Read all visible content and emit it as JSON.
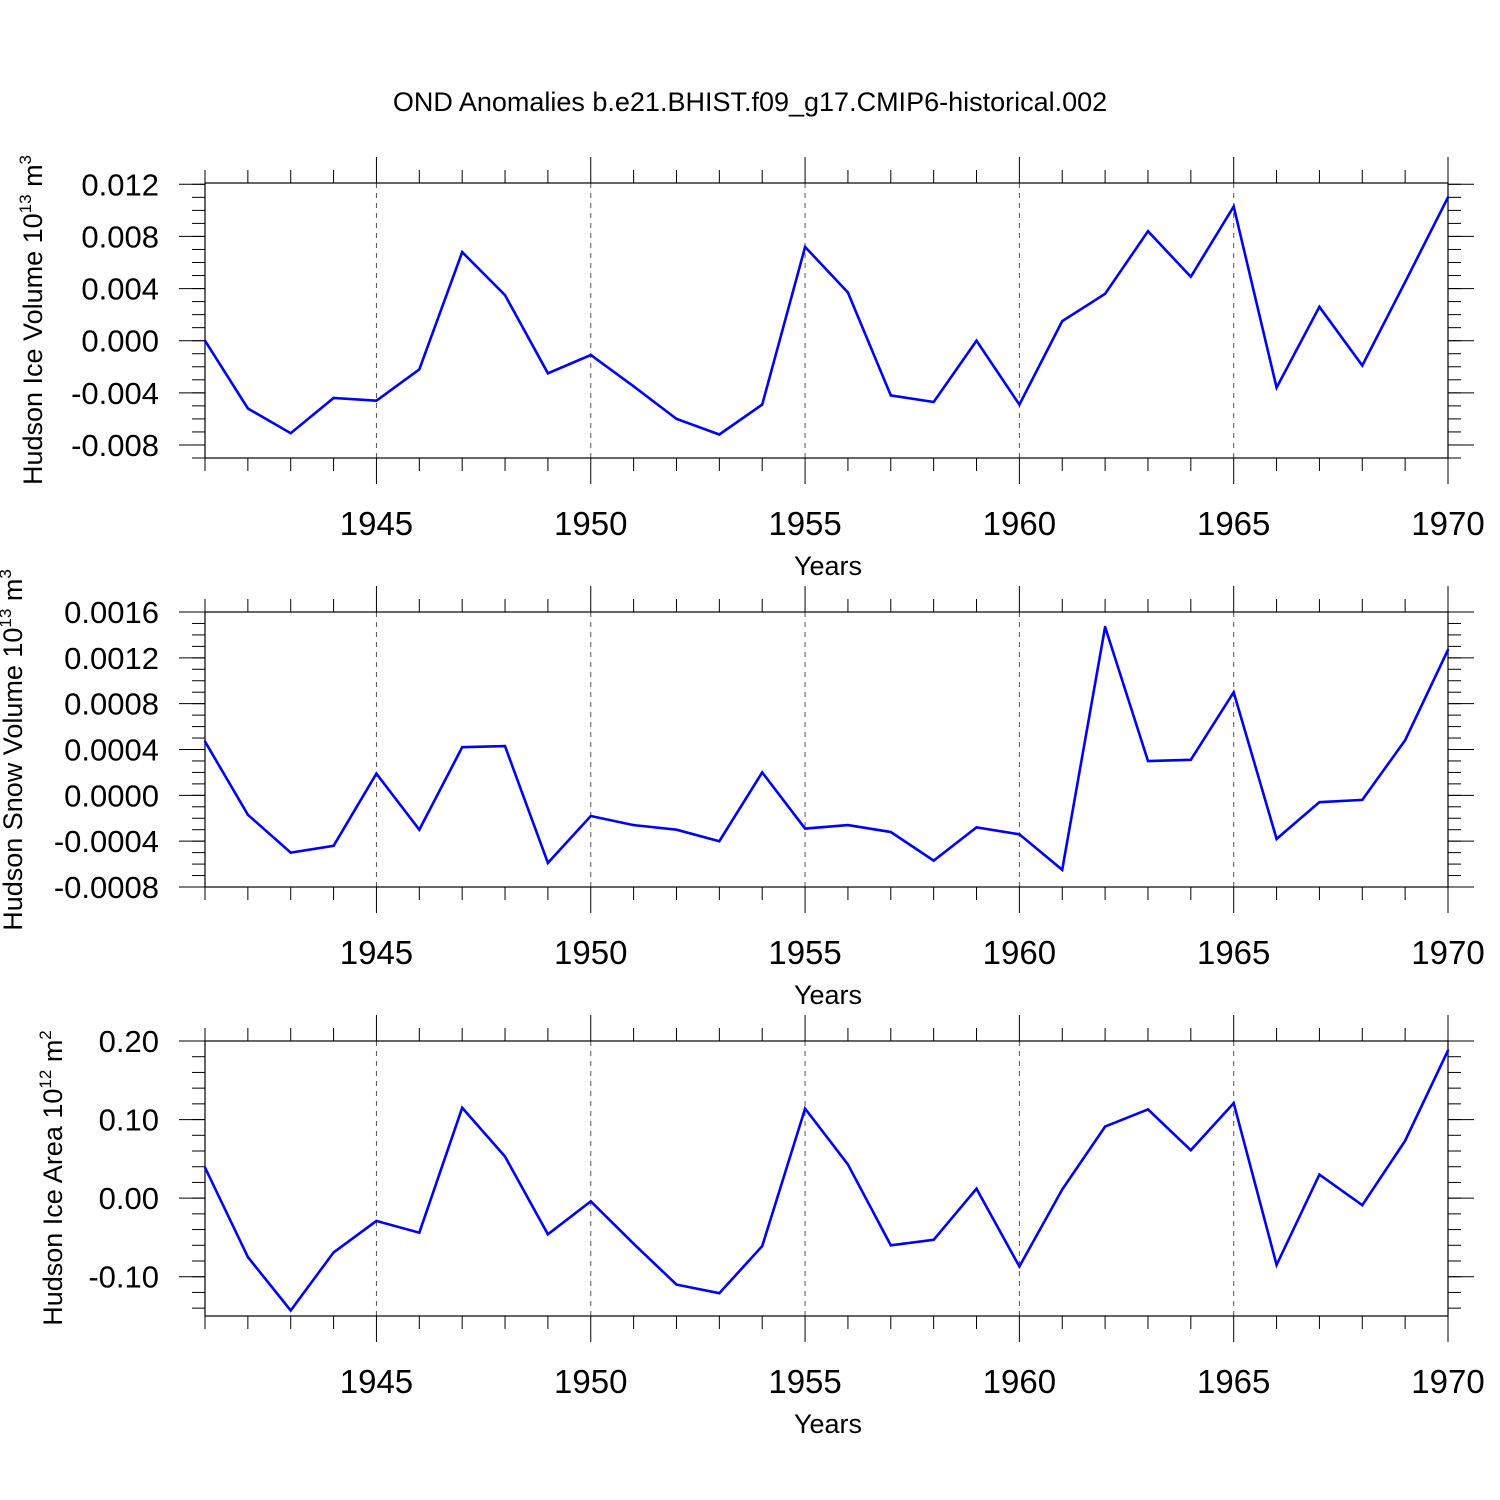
{
  "title": "OND Anomalies b.e21.BHIST.f09_g17.CMIP6-historical.002",
  "colors": {
    "line": "#0000ff",
    "axes": "#000000",
    "grid": "#000000"
  },
  "chart_data": [
    {
      "type": "line",
      "title": "OND Anomalies b.e21.BHIST.f09_g17.CMIP6-historical.002",
      "xlabel": "Years",
      "ylabel_text": "Hudson Ice Volume 10",
      "ylabel_exp": "13",
      "ylabel_unit": " m",
      "ylabel_unit_exp": "3",
      "xlim": [
        1941,
        1970
      ],
      "ylim": [
        -0.009,
        0.0121
      ],
      "yticks": [
        0.012,
        0.008,
        0.004,
        0.0,
        -0.004,
        -0.008
      ],
      "ytick_labels": [
        "0.012",
        "0.008",
        "0.004",
        "0.000",
        "-0.004",
        "-0.008"
      ],
      "yminor_step": 0.001,
      "xticks": [
        1945,
        1950,
        1955,
        1960,
        1965,
        1970
      ],
      "xtick_labels": [
        "1945",
        "1950",
        "1955",
        "1960",
        "1965",
        "1970"
      ],
      "series": [
        {
          "name": "Hudson Ice Volume",
          "x": [
            1941,
            1942,
            1943,
            1944,
            1945,
            1946,
            1947,
            1948,
            1949,
            1950,
            1951,
            1952,
            1953,
            1954,
            1955,
            1956,
            1957,
            1958,
            1959,
            1960,
            1961,
            1962,
            1963,
            1964,
            1965,
            1966,
            1967,
            1968,
            1969,
            1970
          ],
          "values": [
            0.0,
            -0.0052,
            -0.0071,
            -0.0044,
            -0.0046,
            -0.0022,
            0.0068,
            0.0035,
            -0.0025,
            -0.0011,
            -0.0035,
            -0.006,
            -0.0072,
            -0.0049,
            0.0072,
            0.0037,
            -0.0042,
            -0.0047,
            0.0,
            -0.0049,
            0.0015,
            0.0036,
            0.0084,
            0.0049,
            0.0103,
            -0.0036,
            0.0026,
            -0.0019,
            0.0045,
            0.011
          ]
        }
      ]
    },
    {
      "type": "line",
      "xlabel": "Years",
      "ylabel_text": "Hudson Snow Volume 10",
      "ylabel_exp": "13",
      "ylabel_unit": " m",
      "ylabel_unit_exp": "3",
      "xlim": [
        1941,
        1970
      ],
      "ylim": [
        -0.0008,
        0.0016
      ],
      "yticks": [
        0.0016,
        0.0012,
        0.0008,
        0.0004,
        0.0,
        -0.0004,
        -0.0008
      ],
      "ytick_labels": [
        "0.0016",
        "0.0012",
        "0.0008",
        "0.0004",
        "0.0000",
        "-0.0004",
        "-0.0008"
      ],
      "yminor_step": 0.0001,
      "xticks": [
        1945,
        1950,
        1955,
        1960,
        1965,
        1970
      ],
      "xtick_labels": [
        "1945",
        "1950",
        "1955",
        "1960",
        "1965",
        "1970"
      ],
      "series": [
        {
          "name": "Hudson Snow Volume",
          "x": [
            1941,
            1942,
            1943,
            1944,
            1945,
            1946,
            1947,
            1948,
            1949,
            1950,
            1951,
            1952,
            1953,
            1954,
            1955,
            1956,
            1957,
            1958,
            1959,
            1960,
            1961,
            1962,
            1963,
            1964,
            1965,
            1966,
            1967,
            1968,
            1969,
            1970
          ],
          "values": [
            0.00047,
            -0.00017,
            -0.0005,
            -0.00044,
            0.00019,
            -0.0003,
            0.00042,
            0.00043,
            -0.00059,
            -0.00018,
            -0.00026,
            -0.0003,
            -0.0004,
            0.0002,
            -0.00029,
            -0.00026,
            -0.00032,
            -0.00057,
            -0.00028,
            -0.00034,
            -0.00065,
            0.00147,
            0.0003,
            0.00031,
            0.0009,
            -0.00038,
            -6e-05,
            -4e-05,
            0.00048,
            0.00127
          ]
        }
      ]
    },
    {
      "type": "line",
      "xlabel": "Years",
      "ylabel_text": "Hudson Ice Area 10",
      "ylabel_exp": "12",
      "ylabel_unit": " m",
      "ylabel_unit_exp": "2",
      "xlim": [
        1941,
        1970
      ],
      "ylim": [
        -0.15,
        0.2
      ],
      "yticks": [
        0.2,
        0.1,
        0.0,
        -0.1
      ],
      "ytick_labels": [
        "0.20",
        "0.10",
        "0.00",
        "-0.10"
      ],
      "yminor_step": 0.02,
      "xticks": [
        1945,
        1950,
        1955,
        1960,
        1965,
        1970
      ],
      "xtick_labels": [
        "1945",
        "1950",
        "1955",
        "1960",
        "1965",
        "1970"
      ],
      "series": [
        {
          "name": "Hudson Ice Area",
          "x": [
            1941,
            1942,
            1943,
            1944,
            1945,
            1946,
            1947,
            1948,
            1949,
            1950,
            1951,
            1952,
            1953,
            1954,
            1955,
            1956,
            1957,
            1958,
            1959,
            1960,
            1961,
            1962,
            1963,
            1964,
            1965,
            1966,
            1967,
            1968,
            1969,
            1970
          ],
          "values": [
            0.039,
            -0.075,
            -0.143,
            -0.069,
            -0.029,
            -0.044,
            0.115,
            0.053,
            -0.046,
            -0.004,
            -0.058,
            -0.11,
            -0.121,
            -0.061,
            0.114,
            0.043,
            -0.06,
            -0.053,
            0.012,
            -0.087,
            0.011,
            0.091,
            0.113,
            0.061,
            0.121,
            -0.085,
            0.03,
            -0.009,
            0.073,
            0.188
          ]
        }
      ]
    }
  ]
}
